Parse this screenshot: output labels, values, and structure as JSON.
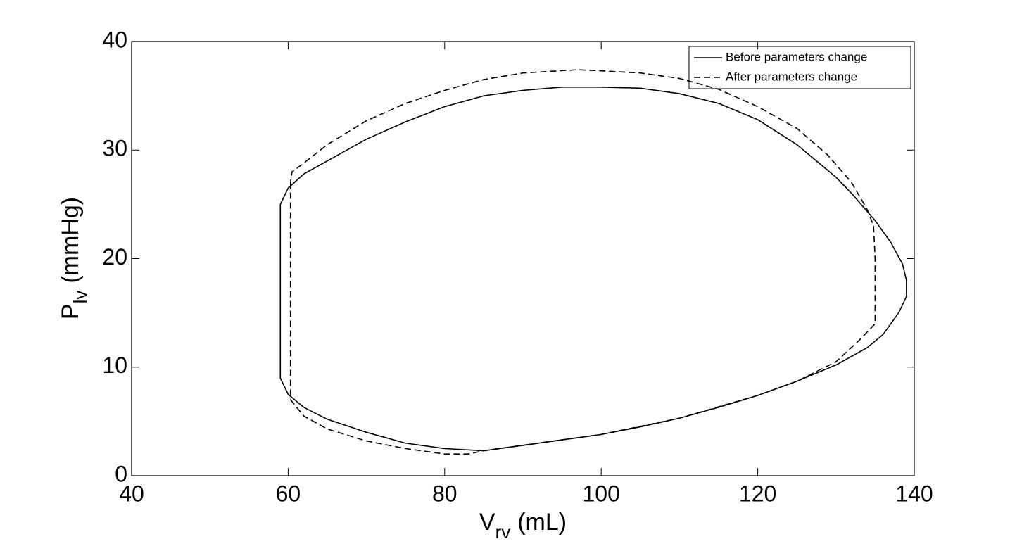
{
  "chart_data": {
    "type": "line",
    "xlabel": {
      "main": "V",
      "subscript": "rv",
      "unit": "(mL)"
    },
    "ylabel": {
      "main": "P",
      "subscript": "lv",
      "unit": "(mmHg)"
    },
    "xlim": [
      40,
      140
    ],
    "xticks": [
      40,
      60,
      80,
      100,
      120,
      140
    ],
    "ylim": [
      0,
      40
    ],
    "yticks": [
      0,
      10,
      20,
      30,
      40
    ],
    "grid": false,
    "legend": "upper right",
    "series": [
      {
        "name": "Before parameters change",
        "color": "#000000",
        "linestyle": "solid",
        "x": [
          59,
          59,
          60,
          62,
          65,
          70,
          75,
          80,
          85,
          90,
          95,
          100,
          105,
          110,
          115,
          120,
          125,
          130,
          134,
          136,
          138,
          139,
          139,
          138.5,
          137,
          135,
          132,
          130,
          125,
          120,
          115,
          110,
          105,
          100,
          95,
          90,
          85,
          80,
          75,
          70,
          65,
          62,
          60,
          59
        ],
        "values": [
          25,
          9,
          7.5,
          6.3,
          5.2,
          4,
          3,
          2.5,
          2.3,
          2.8,
          3.3,
          3.8,
          4.5,
          5.3,
          6.3,
          7.4,
          8.7,
          10.2,
          11.8,
          13,
          15,
          16.5,
          18,
          19.5,
          21.5,
          23.5,
          26,
          27.5,
          30.5,
          32.8,
          34.3,
          35.2,
          35.7,
          35.8,
          35.8,
          35.5,
          35,
          34,
          32.6,
          31,
          29,
          27.8,
          26.5,
          25
        ]
      },
      {
        "name": "After parameters change",
        "color": "#000000",
        "linestyle": "dashed",
        "x": [
          60.3,
          60.3,
          62,
          65,
          70,
          75,
          80,
          83,
          85,
          90,
          100,
          110,
          120,
          125,
          130,
          133,
          135,
          135,
          135,
          134.8,
          134,
          132,
          129,
          125,
          120,
          115,
          110,
          105,
          100,
          97,
          90,
          85,
          80,
          75,
          70,
          65,
          62,
          60.5,
          60.3
        ],
        "values": [
          27,
          7,
          5.5,
          4.3,
          3.2,
          2.5,
          2,
          2,
          2.3,
          2.8,
          3.8,
          5.3,
          7.4,
          8.7,
          10.5,
          12.5,
          14,
          16,
          20,
          23,
          24.5,
          27,
          29.5,
          32,
          34,
          35.6,
          36.6,
          37.1,
          37.3,
          37.4,
          37.1,
          36.5,
          35.5,
          34.3,
          32.7,
          30.5,
          28.8,
          28,
          27
        ]
      }
    ]
  }
}
